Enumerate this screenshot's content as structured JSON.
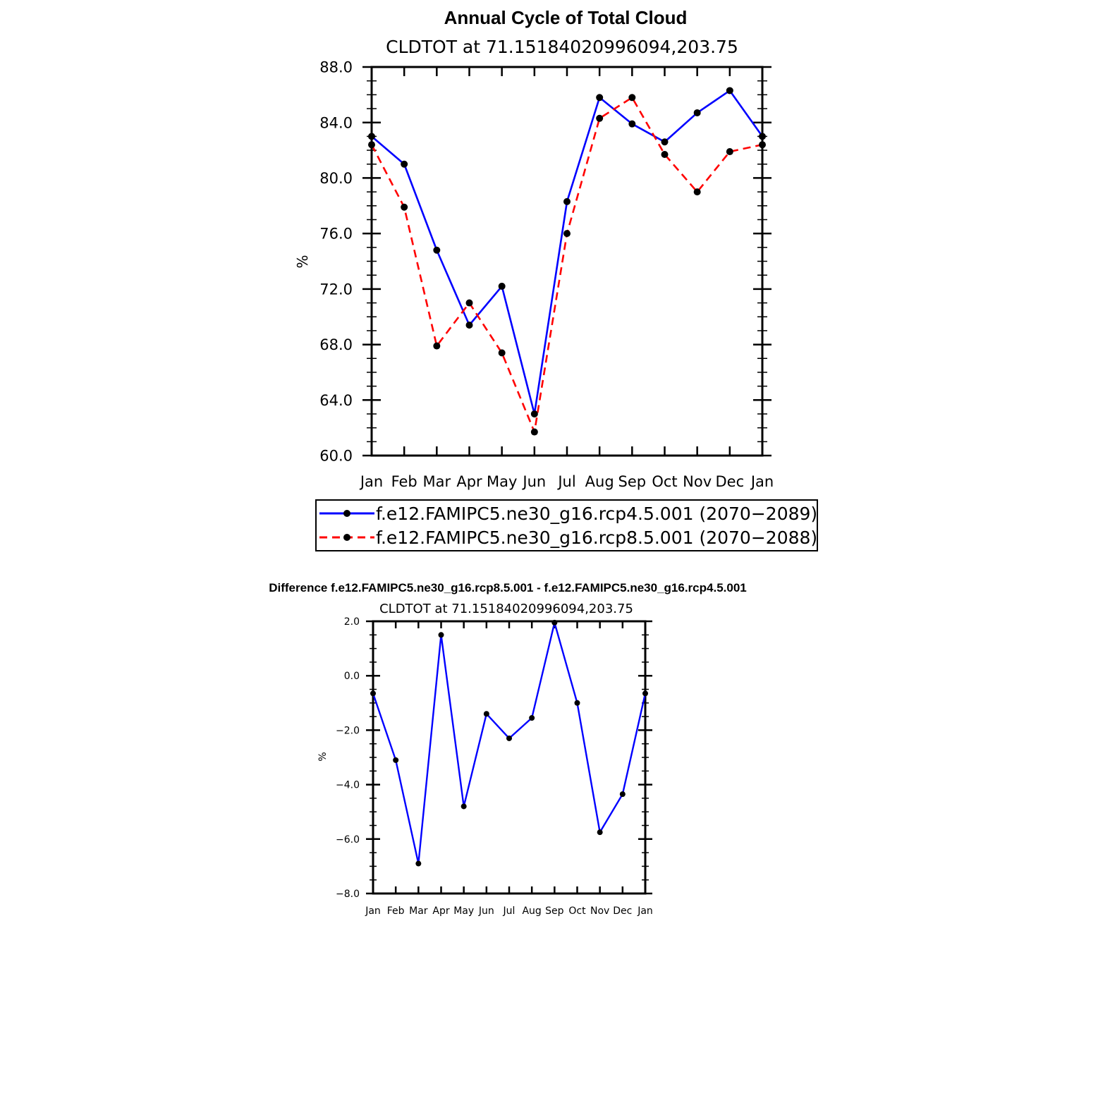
{
  "chart_data": [
    {
      "type": "line",
      "title": "Annual Cycle of Total Cloud",
      "subtitle": "CLDTOT at 71.15184020996094,203.75",
      "xlabel": "",
      "ylabel": "%",
      "categories": [
        "Jan",
        "Feb",
        "Mar",
        "Apr",
        "May",
        "Jun",
        "Jul",
        "Aug",
        "Sep",
        "Oct",
        "Nov",
        "Dec",
        "Jan"
      ],
      "ylim": [
        60.0,
        88.0
      ],
      "yticks": [
        "60.0",
        "64.0",
        "68.0",
        "72.0",
        "76.0",
        "80.0",
        "84.0",
        "88.0"
      ],
      "legend_position": "bottom",
      "series": [
        {
          "name": "f.e12.FAMIPC5.ne30_g16.rcp4.5.001 (2070−2089)",
          "color": "#0000ff",
          "dash": "solid",
          "values": [
            83.0,
            81.0,
            74.8,
            69.4,
            72.2,
            63.0,
            78.3,
            85.8,
            83.9,
            82.6,
            84.7,
            86.3,
            83.0
          ]
        },
        {
          "name": "f.e12.FAMIPC5.ne30_g16.rcp8.5.001 (2070−2088)",
          "color": "#ff0000",
          "dash": "dashed",
          "values": [
            82.4,
            77.9,
            67.9,
            71.0,
            67.4,
            61.7,
            76.0,
            84.3,
            85.8,
            81.7,
            79.0,
            81.9,
            82.4
          ]
        }
      ]
    },
    {
      "type": "line",
      "title": "Difference f.e12.FAMIPC5.ne30_g16.rcp8.5.001 - f.e12.FAMIPC5.ne30_g16.rcp4.5.001",
      "subtitle": "CLDTOT at 71.15184020996094,203.75",
      "xlabel": "",
      "ylabel": "%",
      "categories": [
        "Jan",
        "Feb",
        "Mar",
        "Apr",
        "May",
        "Jun",
        "Jul",
        "Aug",
        "Sep",
        "Oct",
        "Nov",
        "Dec",
        "Jan"
      ],
      "ylim": [
        -8.0,
        2.0
      ],
      "yticks": [
        "−8.0",
        "−6.0",
        "−4.0",
        "−2.0",
        "0.0",
        "2.0"
      ],
      "series": [
        {
          "name": "",
          "color": "#0000ff",
          "dash": "solid",
          "values": [
            -0.65,
            -3.1,
            -6.9,
            1.5,
            -4.8,
            -1.4,
            -2.3,
            -1.55,
            1.95,
            -1.0,
            -5.75,
            -4.35,
            -0.65
          ]
        }
      ]
    }
  ]
}
